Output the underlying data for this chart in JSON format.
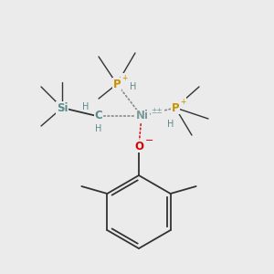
{
  "background_color": "#ebebeb",
  "colors": {
    "Ni": "#7a9a9a",
    "P": "#c89000",
    "Si": "#5a8a8a",
    "C": "#5a8a8a",
    "O": "#dd0000",
    "H": "#5a8a8a",
    "bond": "#333333",
    "coord_bond": "#888888",
    "red_dot": "#cc2222"
  },
  "figsize": [
    3.0,
    3.0
  ],
  "dpi": 100
}
